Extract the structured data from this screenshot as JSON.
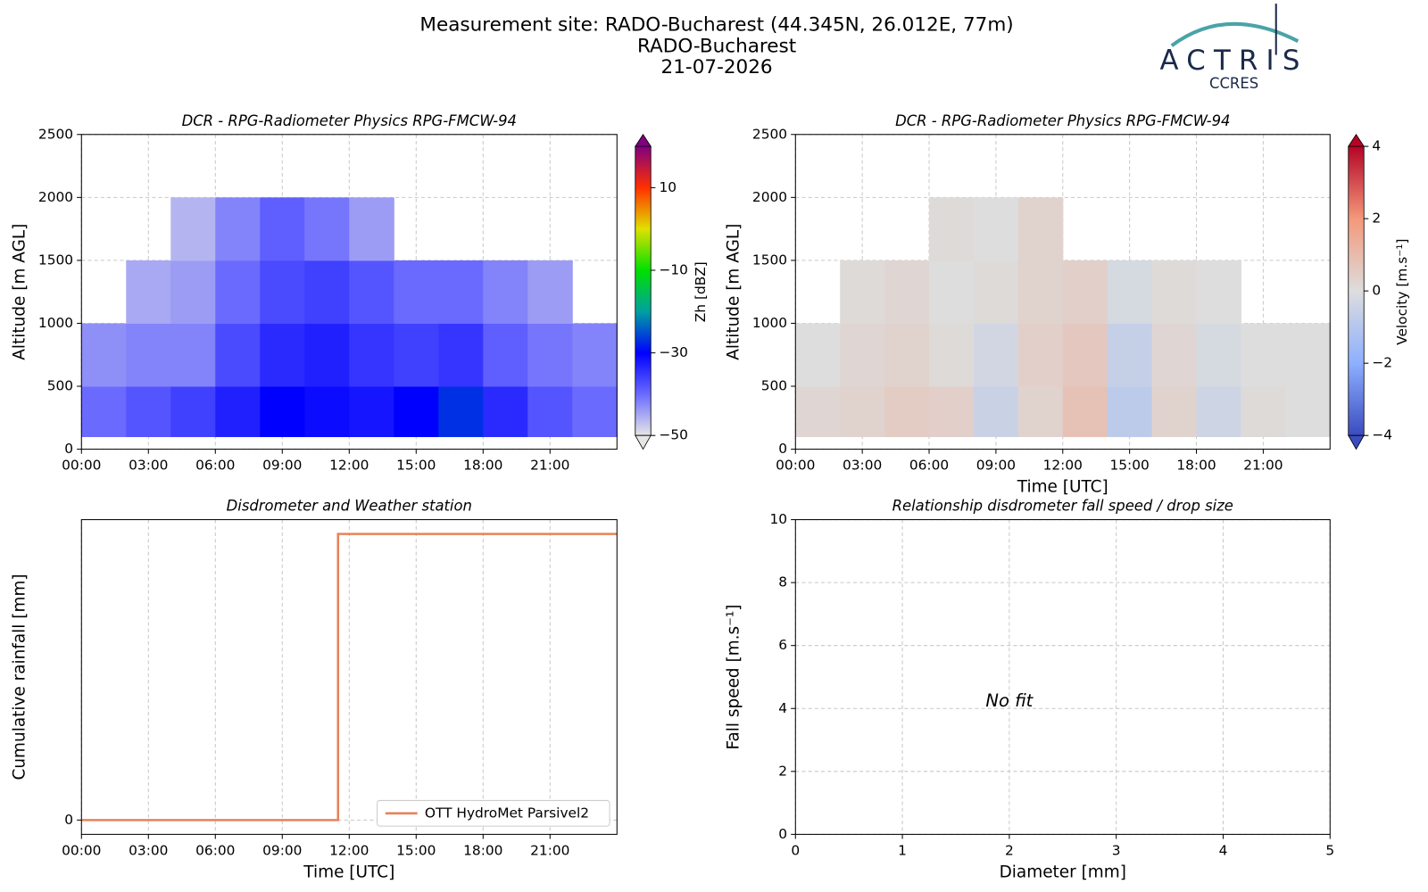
{
  "header": {
    "title": [
      "Measurement site: RADO-Bucharest (44.345N, 26.012E, 77m)",
      "RADO-Bucharest",
      "21-07-2026"
    ],
    "logo": "ACTRIS",
    "logo_sub": "CCRES"
  },
  "chart_data": [
    {
      "type": "heatmap",
      "title": "DCR - RPG-Radiometer Physics RPG-FMCW-94",
      "ylabel": "Altitude [m AGL]",
      "xlim": [
        0,
        24
      ],
      "xticks": [
        {
          "value": 0,
          "label": "00:00"
        },
        {
          "value": 3,
          "label": "03:00"
        },
        {
          "value": 6,
          "label": "06:00"
        },
        {
          "value": 9,
          "label": "09:00"
        },
        {
          "value": 12,
          "label": "12:00"
        },
        {
          "value": 15,
          "label": "15:00"
        },
        {
          "value": 18,
          "label": "18:00"
        },
        {
          "value": 21,
          "label": "21:00"
        }
      ],
      "ylim": [
        0,
        2500
      ],
      "yticks": [
        0,
        500,
        1000,
        1500,
        2000,
        2500
      ],
      "grid": true,
      "x_bins": [
        0,
        2,
        4,
        6,
        8,
        10,
        12,
        14,
        16,
        18,
        20,
        22,
        24
      ],
      "y_bins": [
        100,
        500,
        1000,
        1500,
        2000
      ],
      "z": [
        [
          -40,
          -38,
          -36,
          -33,
          -30,
          -31,
          -32,
          -30,
          -27,
          -34,
          -38,
          -40
        ],
        [
          -43,
          -42,
          -42,
          -37,
          -34,
          -33,
          -35,
          -36,
          -35,
          -39,
          -41,
          -42
        ],
        [
          null,
          -45,
          -44,
          -40,
          -37,
          -36,
          -38,
          -40,
          -40,
          -42,
          -44,
          null
        ],
        [
          null,
          null,
          -46,
          -42,
          -39,
          -41,
          -44,
          null,
          null,
          null,
          null,
          null
        ]
      ],
      "colormap": [
        "#e6e6e6",
        "#6a6aff",
        "#0000ff",
        "#00a0a0",
        "#00e000",
        "#e0e000",
        "#ff3000",
        "#800080"
      ],
      "colorbar": {
        "label": "Zh [dBZ]",
        "clim": [
          -50,
          20
        ],
        "ticks": [
          {
            "value": -50,
            "label": "−50"
          },
          {
            "value": -30,
            "label": "−30"
          },
          {
            "value": -10,
            "label": "−10"
          },
          10
        ]
      }
    },
    {
      "type": "heatmap",
      "title": "DCR - RPG-Radiometer Physics RPG-FMCW-94",
      "xlabel": "Time [UTC]",
      "ylabel": "Altitude [m AGL]",
      "xlim": [
        0,
        24
      ],
      "xticks": [
        {
          "value": 0,
          "label": "00:00"
        },
        {
          "value": 3,
          "label": "03:00"
        },
        {
          "value": 6,
          "label": "06:00"
        },
        {
          "value": 9,
          "label": "09:00"
        },
        {
          "value": 12,
          "label": "12:00"
        },
        {
          "value": 15,
          "label": "15:00"
        },
        {
          "value": 18,
          "label": "18:00"
        },
        {
          "value": 21,
          "label": "21:00"
        }
      ],
      "ylim": [
        0,
        2500
      ],
      "yticks": [
        0,
        500,
        1000,
        1500,
        2000,
        2500
      ],
      "grid": true,
      "x_bins": [
        0,
        2,
        4,
        6,
        8,
        10,
        12,
        14,
        16,
        18,
        20,
        22,
        24
      ],
      "y_bins": [
        100,
        500,
        1000,
        1500,
        2000
      ],
      "z": [
        [
          0.2,
          0.3,
          0.5,
          0.4,
          -0.5,
          0.3,
          0.8,
          -0.8,
          0.3,
          -0.4,
          0.1,
          0
        ],
        [
          0,
          0.2,
          0.3,
          0.1,
          -0.3,
          0.4,
          0.6,
          -0.6,
          0.2,
          -0.2,
          0,
          0
        ],
        [
          null,
          0.1,
          0.2,
          0,
          0.1,
          0.3,
          0.4,
          -0.2,
          0.1,
          0,
          null,
          null
        ],
        [
          null,
          null,
          null,
          0.1,
          0,
          0.3,
          null,
          null,
          null,
          null,
          null,
          null
        ]
      ],
      "colormap": [
        "#3b4cc0",
        "#8db0fe",
        "#dddddd",
        "#f4987a",
        "#b40426"
      ],
      "colorbar": {
        "label": "Velocity [m.s⁻¹]",
        "clim": [
          -4,
          4
        ],
        "ticks": [
          {
            "value": -4,
            "label": "−4"
          },
          {
            "value": -2,
            "label": "−2"
          },
          0,
          2,
          4
        ]
      }
    },
    {
      "type": "line",
      "title": "Disdrometer and Weather station",
      "xlabel": "Time [UTC]",
      "ylabel": "Cumulative rainfall [mm]",
      "xlim": [
        0,
        24
      ],
      "xticks": [
        {
          "value": 0,
          "label": "00:00"
        },
        {
          "value": 3,
          "label": "03:00"
        },
        {
          "value": 6,
          "label": "06:00"
        },
        {
          "value": 9,
          "label": "09:00"
        },
        {
          "value": 12,
          "label": "12:00"
        },
        {
          "value": 15,
          "label": "15:00"
        },
        {
          "value": 18,
          "label": "18:00"
        },
        {
          "value": 21,
          "label": "21:00"
        }
      ],
      "ylim": [
        -0.05,
        1.05
      ],
      "yticks": [
        0
      ],
      "grid": true,
      "legend": "lower right",
      "series": [
        {
          "name": "OTT HydroMet Parsivel2",
          "color": "#e8825a",
          "x": [
            0,
            11.5,
            11.5,
            24
          ],
          "values": [
            0,
            0,
            1,
            1
          ]
        }
      ]
    },
    {
      "type": "scatter",
      "title": "Relationship disdrometer fall speed / drop size",
      "xlabel": "Diameter [mm]",
      "ylabel": "Fall speed [m.s⁻¹]",
      "xlim": [
        0,
        5
      ],
      "xticks": [
        0,
        1,
        2,
        3,
        4,
        5
      ],
      "ylim": [
        0,
        10
      ],
      "yticks": [
        0,
        2,
        4,
        6,
        8,
        10
      ],
      "grid": true,
      "annotation": "No fit",
      "series": []
    }
  ]
}
